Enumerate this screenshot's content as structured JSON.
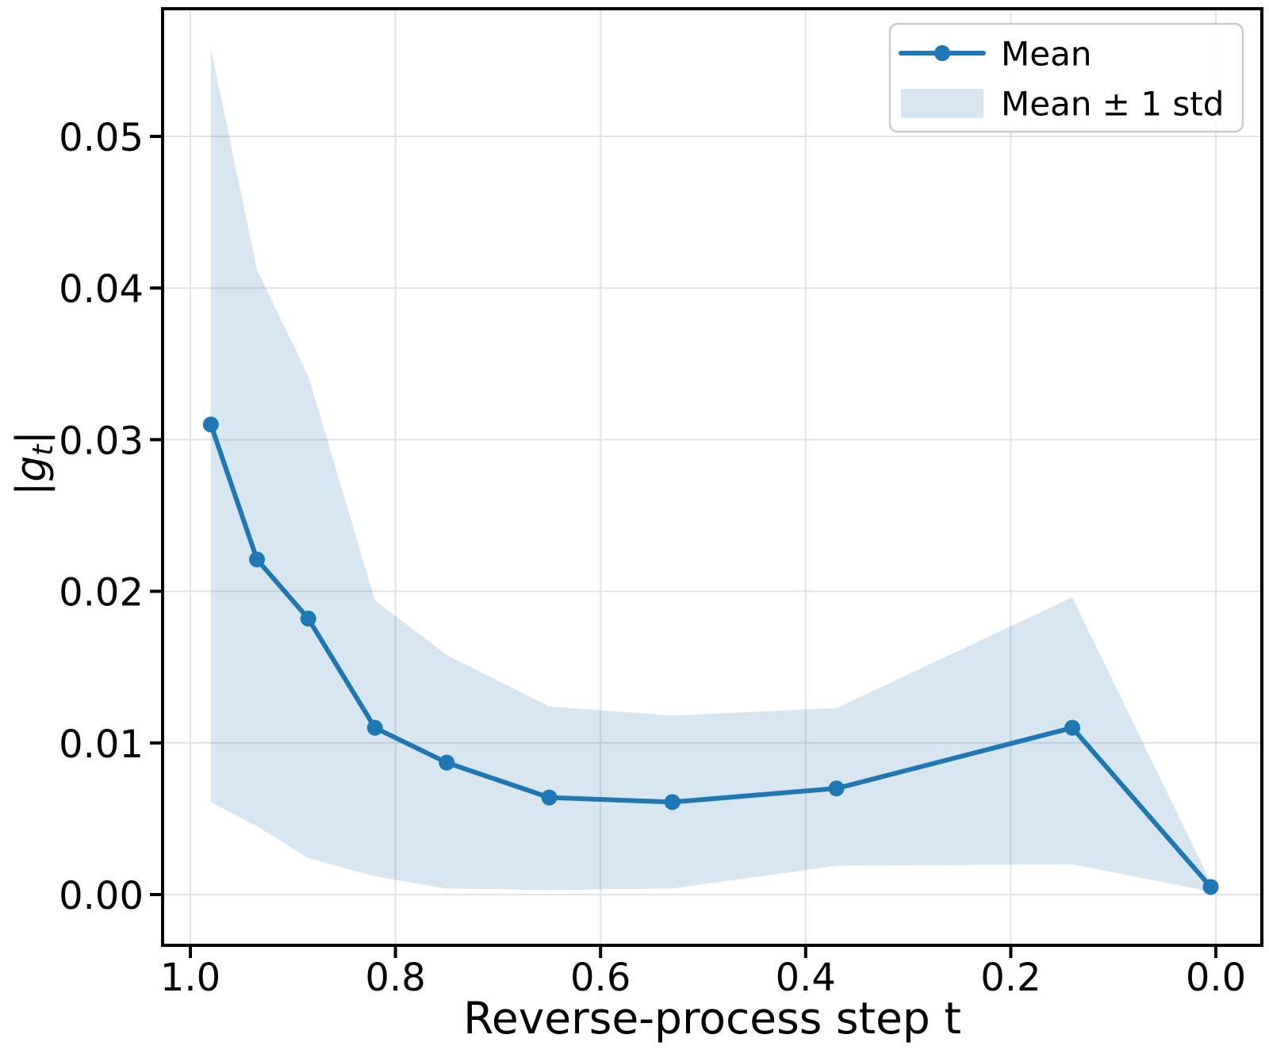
{
  "chart_data": {
    "type": "line",
    "title": "",
    "xlabel": "Reverse-process step t",
    "ylabel": "|g_t|",
    "ylabel_parts": [
      {
        "text": "|",
        "italic": false,
        "sub": false
      },
      {
        "text": "g",
        "italic": true,
        "sub": false
      },
      {
        "text": "t",
        "italic": true,
        "sub": true
      },
      {
        "text": "|",
        "italic": false,
        "sub": false
      }
    ],
    "x_axis_reversed": true,
    "xlim": [
      1.03,
      -0.04
    ],
    "ylim": [
      -0.0033,
      0.0584
    ],
    "grid": true,
    "x_ticks": {
      "values": [
        1.0,
        0.8,
        0.6,
        0.4,
        0.2,
        0.0
      ],
      "labels": [
        "1.0",
        "0.8",
        "0.6",
        "0.4",
        "0.2",
        "0.0"
      ]
    },
    "y_ticks": {
      "values": [
        0.0,
        0.01,
        0.02,
        0.03,
        0.04,
        0.05
      ],
      "labels": [
        "0.00",
        "0.01",
        "0.02",
        "0.03",
        "0.04",
        "0.05"
      ]
    },
    "x": [
      0.98,
      0.935,
      0.885,
      0.82,
      0.75,
      0.65,
      0.53,
      0.37,
      0.14,
      0.005
    ],
    "series": [
      {
        "name": "Mean",
        "values": [
          0.031,
          0.0221,
          0.0182,
          0.011,
          0.0087,
          0.0064,
          0.0061,
          0.007,
          0.011,
          0.0005
        ]
      }
    ],
    "band": {
      "name": "Mean ± 1 std",
      "upper": [
        0.0558,
        0.0412,
        0.0342,
        0.0194,
        0.0158,
        0.0124,
        0.0118,
        0.0123,
        0.0196,
        0.0008
      ],
      "lower": [
        0.0061,
        0.0045,
        0.0024,
        0.0012,
        0.0004,
        0.0003,
        0.0004,
        0.0019,
        0.002,
        0.0002
      ]
    },
    "legend": {
      "position": "upper right",
      "entries": [
        {
          "label": "Mean",
          "type": "line-marker"
        },
        {
          "label": "Mean ± 1 std",
          "type": "patch"
        }
      ]
    },
    "colors": {
      "line": "#1f77b4",
      "band_fill_base": "#1f77b4",
      "band_rendered": "#d7e7f2",
      "grid": "#e2e2e2",
      "spine": "#000000",
      "text": "#000000",
      "legend_border": "#cccccc",
      "background": "#ffffff"
    }
  }
}
